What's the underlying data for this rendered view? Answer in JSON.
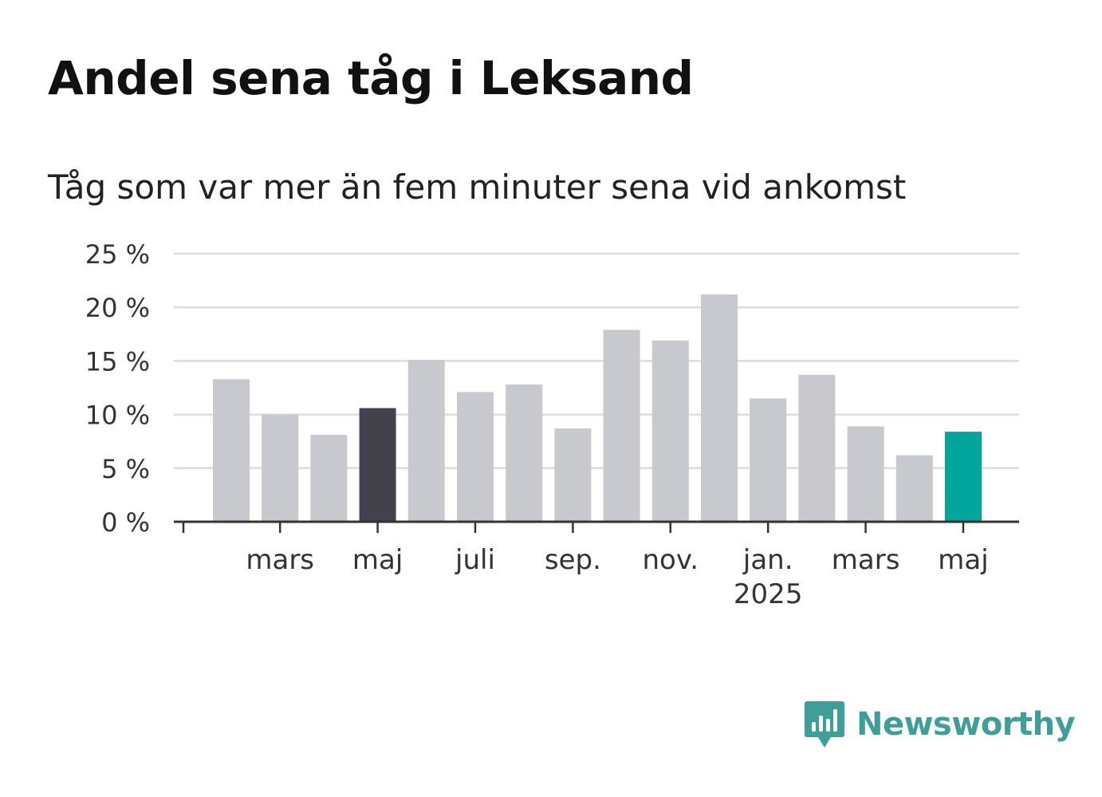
{
  "title": "Andel sena tåg i Leksand",
  "subtitle": "Tåg som var mer än fem minuter sena vid ankomst",
  "brand": {
    "name": "Newsworthy",
    "icon": "newsworthy-logo-icon"
  },
  "colors": {
    "bar_default": "#c8c8cf",
    "bar_highlight_dark": "#43424c",
    "bar_highlight_latest": "#00a699",
    "gridline": "#dddddd",
    "axis": "#333333",
    "brand": "#3f9e98"
  },
  "chart_data": {
    "type": "bar",
    "title": "",
    "xlabel": "",
    "ylabel": "",
    "ylim": [
      0,
      25
    ],
    "yticks": [
      0,
      5,
      10,
      15,
      20,
      25
    ],
    "ytick_labels": [
      "0 %",
      "5 %",
      "10 %",
      "15 %",
      "20 %",
      "25 %"
    ],
    "grid": true,
    "categories": [
      "2024-02",
      "2024-03",
      "2024-04",
      "2024-05",
      "2024-06",
      "2024-07",
      "2024-08",
      "2024-09",
      "2024-10",
      "2024-11",
      "2024-12",
      "2025-01",
      "2025-02",
      "2025-03",
      "2025-04",
      "2025-05"
    ],
    "values": [
      13.3,
      10.0,
      8.1,
      10.6,
      15.1,
      12.1,
      12.8,
      8.7,
      17.9,
      16.9,
      21.2,
      11.5,
      13.7,
      8.9,
      6.2,
      8.4
    ],
    "highlight": {
      "2024-05": "bar_highlight_dark",
      "2025-05": "bar_highlight_latest"
    },
    "xtick_labels": [
      {
        "category": "2024-03",
        "label": "mars",
        "sublabel": ""
      },
      {
        "category": "2024-05",
        "label": "maj",
        "sublabel": ""
      },
      {
        "category": "2024-07",
        "label": "juli",
        "sublabel": ""
      },
      {
        "category": "2024-09",
        "label": "sep.",
        "sublabel": ""
      },
      {
        "category": "2024-11",
        "label": "nov.",
        "sublabel": ""
      },
      {
        "category": "2025-01",
        "label": "jan.",
        "sublabel": "2025"
      },
      {
        "category": "2025-03",
        "label": "mars",
        "sublabel": ""
      },
      {
        "category": "2025-05",
        "label": "maj",
        "sublabel": ""
      }
    ]
  }
}
